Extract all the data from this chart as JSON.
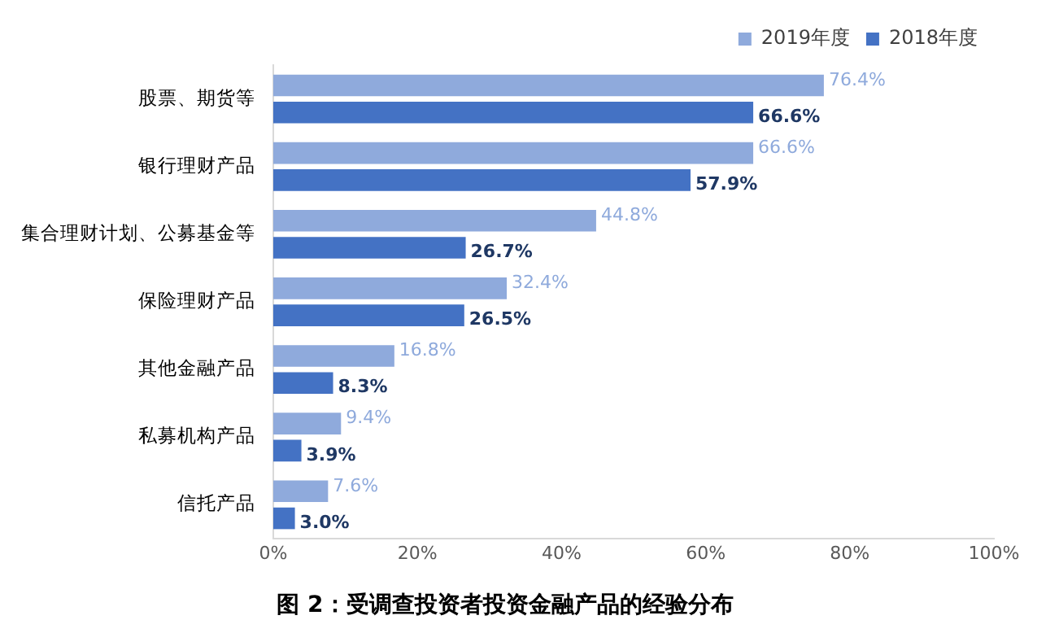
{
  "chart_data": {
    "type": "bar",
    "orientation": "horizontal",
    "title": "图 2：受调查投资者投资金融产品的经验分布",
    "categories": [
      "股票、期货等",
      "银行理财产品",
      "集合理财计划、公募基金等",
      "保险理财产品",
      "其他金融产品",
      "私募机构产品",
      "信托产品"
    ],
    "series": [
      {
        "name": "2019年度",
        "color": "#8faadc",
        "values": [
          76.4,
          66.6,
          44.8,
          32.4,
          16.8,
          9.4,
          7.6
        ],
        "value_labels": [
          "76.4%",
          "66.6%",
          "44.8%",
          "32.4%",
          "16.8%",
          "9.4%",
          "7.6%"
        ]
      },
      {
        "name": "2018年度",
        "color": "#4472c4",
        "values": [
          66.6,
          57.9,
          26.7,
          26.5,
          8.3,
          3.9,
          3.0
        ],
        "value_labels": [
          "66.6%",
          "57.9%",
          "26.7%",
          "26.5%",
          "8.3%",
          "3.9%",
          "3.0%"
        ]
      }
    ],
    "xlim": [
      0,
      100
    ],
    "xticks": [
      {
        "value": 0,
        "label": "0%"
      },
      {
        "value": 20,
        "label": "20%"
      },
      {
        "value": 40,
        "label": "40%"
      },
      {
        "value": 60,
        "label": "60%"
      },
      {
        "value": 80,
        "label": "80%"
      },
      {
        "value": 100,
        "label": "100%"
      }
    ],
    "grid": false,
    "legend": "top right"
  }
}
